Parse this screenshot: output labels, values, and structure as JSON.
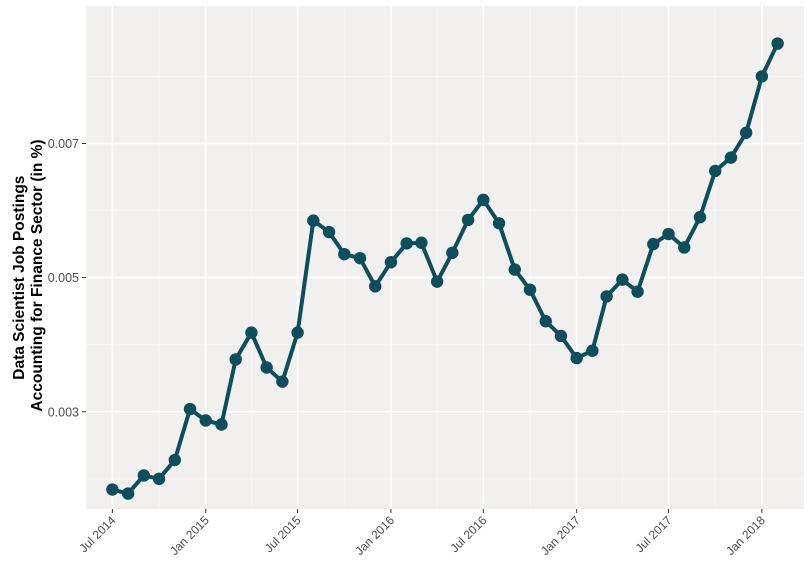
{
  "chart_data": {
    "type": "line",
    "title": "",
    "xlabel": "",
    "ylabel": [
      "Data Scientist Job Postings",
      "Accounting for Finance Sector (in %)"
    ],
    "x_tick_labels": [
      "Jul 2014",
      "Jan 2015",
      "Jul 2015",
      "Jan 2016",
      "Jul 2016",
      "Jan 2017",
      "Jul 2017",
      "Jan 2018"
    ],
    "x_tick_dates": [
      "2014-07-01",
      "2015-01-01",
      "2015-07-01",
      "2016-01-01",
      "2016-07-01",
      "2017-01-01",
      "2017-07-01",
      "2018-01-01"
    ],
    "y_tick_labels": [
      "0.003",
      "0.005",
      "0.007"
    ],
    "y_tick_values": [
      0.003,
      0.005,
      0.007
    ],
    "xlim": [
      "2014-05-10",
      "2018-03-25"
    ],
    "ylim": [
      0.00155,
      0.00905
    ],
    "grid": true,
    "legend": "none",
    "colors": {
      "series": "#0e4d5c",
      "panel_background": "#f1f0ee",
      "grid_major": "#ffffff",
      "grid_minor": "#f8f7f6",
      "tick_text": "#4d4d4d",
      "axis_title": "#000000"
    },
    "series": [
      {
        "x": [
          "2014-07-01",
          "2014-08-01",
          "2014-09-01",
          "2014-10-01",
          "2014-11-01",
          "2014-12-01",
          "2015-01-01",
          "2015-02-01",
          "2015-03-01",
          "2015-04-01",
          "2015-05-01",
          "2015-06-01",
          "2015-07-01",
          "2015-08-01",
          "2015-09-01",
          "2015-10-01",
          "2015-11-01",
          "2015-12-01",
          "2016-01-01",
          "2016-02-01",
          "2016-03-01",
          "2016-04-01",
          "2016-05-01",
          "2016-06-01",
          "2016-07-01",
          "2016-08-01",
          "2016-09-01",
          "2016-10-01",
          "2016-11-01",
          "2016-12-01",
          "2017-01-01",
          "2017-02-01",
          "2017-03-01",
          "2017-04-01",
          "2017-05-01",
          "2017-06-01",
          "2017-07-01",
          "2017-08-01",
          "2017-09-01",
          "2017-10-01",
          "2017-11-01",
          "2017-12-01",
          "2018-01-01",
          "2018-02-01"
        ],
        "values": [
          0.00184,
          0.00178,
          0.00205,
          0.002,
          0.00228,
          0.00304,
          0.00287,
          0.00281,
          0.00378,
          0.00418,
          0.00366,
          0.00345,
          0.00418,
          0.00585,
          0.00568,
          0.00535,
          0.00529,
          0.00487,
          0.00523,
          0.00551,
          0.00552,
          0.00494,
          0.00537,
          0.00586,
          0.00616,
          0.00581,
          0.00512,
          0.00482,
          0.00435,
          0.00413,
          0.0038,
          0.00391,
          0.00472,
          0.00497,
          0.00479,
          0.0055,
          0.00565,
          0.00545,
          0.0059,
          0.00659,
          0.00679,
          0.00716,
          0.008,
          0.00849
        ]
      }
    ]
  }
}
